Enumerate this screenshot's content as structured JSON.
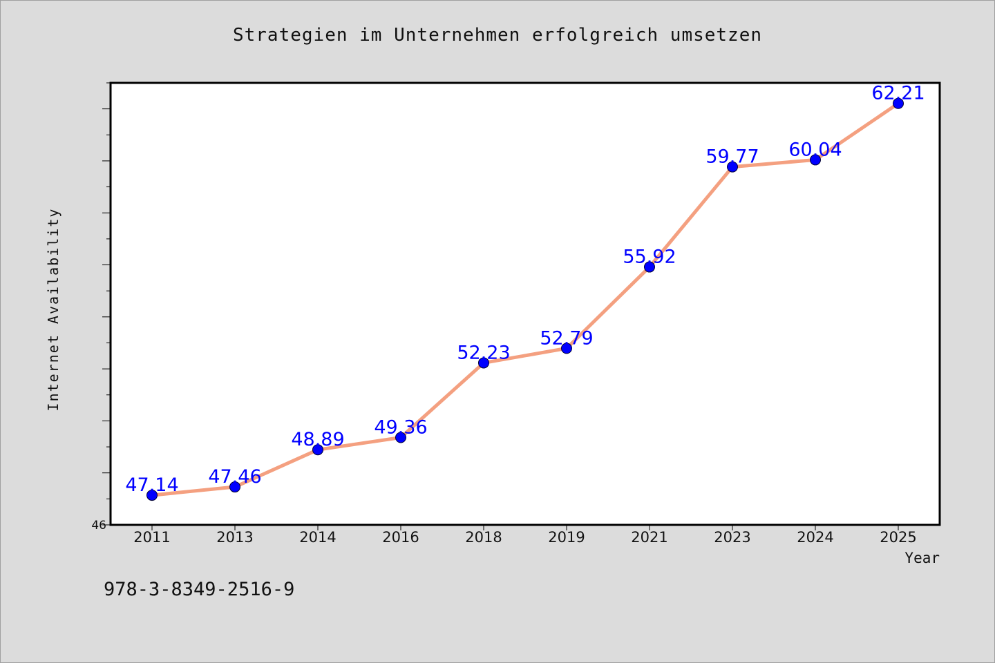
{
  "title": "Strategien im Unternehmen erfolgreich umsetzen",
  "footer_text": "978-3-8349-2516-9",
  "colors": {
    "background": "#dcdcdc",
    "plot_background": "#ffffff",
    "line": "#f4a080",
    "markers": "#0000ff",
    "data_labels": "#0000ff"
  },
  "chart_data": {
    "type": "line",
    "title": "Strategien im Unternehmen erfolgreich umsetzen",
    "xlabel": "Year",
    "ylabel": "Internet Availability",
    "categories": [
      "2011",
      "2013",
      "2014",
      "2016",
      "2018",
      "2019",
      "2021",
      "2023",
      "2024",
      "2025"
    ],
    "series": [
      {
        "values": [
          47.14,
          47.46,
          48.89,
          49.36,
          52.23,
          52.79,
          55.92,
          59.77,
          60.04,
          62.21
        ]
      }
    ],
    "y_tick_labels": [
      "46"
    ],
    "ylim": [
      46,
      63
    ],
    "grid": false,
    "legend": false,
    "data_labels": true
  }
}
